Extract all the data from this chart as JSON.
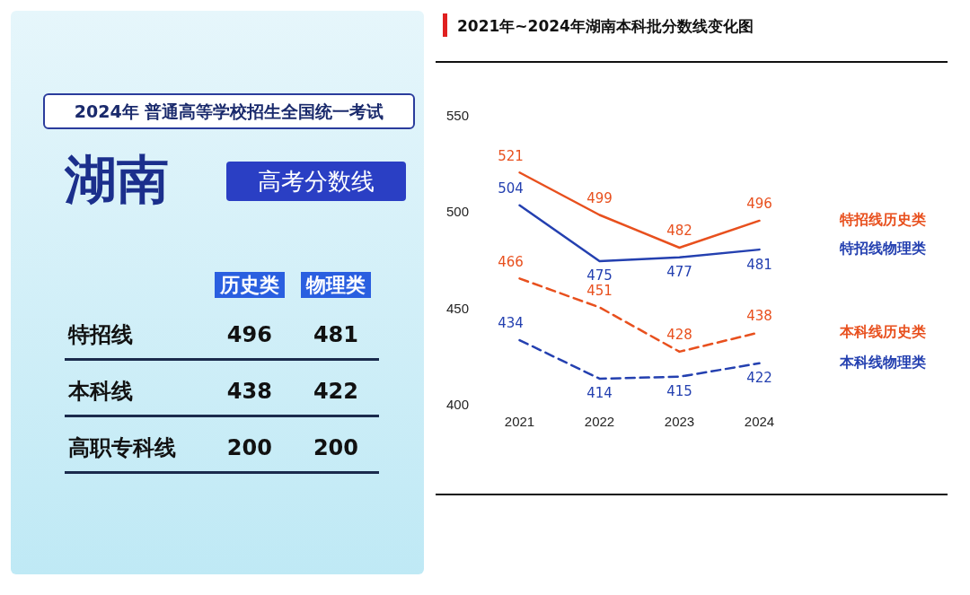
{
  "chart_data": [
    {
      "type": "other",
      "title": "湖南",
      "subtitle": "2024年 普通高等学校招生全国统一考试",
      "annotations": [
        "高考分数线"
      ],
      "categories": [
        "特招线",
        "本科线",
        "高职专科线"
      ],
      "data_labels": true,
      "series": [
        {
          "name": "历史类",
          "values": [
            496,
            438,
            200
          ]
        },
        {
          "name": "物理类",
          "values": [
            481,
            422,
            200
          ]
        }
      ]
    },
    {
      "type": "line",
      "title": "2021年~2024年湖南本科批分数线变化图",
      "categories": [
        "2021",
        "2022",
        "2023",
        "2024"
      ],
      "ylim": [
        400,
        550
      ],
      "yticks": [
        400,
        450,
        500,
        550
      ],
      "grid": false,
      "marker": "none",
      "data_labels": true,
      "series": [
        {
          "name": "特招线历史类",
          "color": "#e8501e",
          "line_style": "solid",
          "values": [
            521,
            499,
            482,
            496
          ]
        },
        {
          "name": "特招线物理类",
          "color": "#2440b0",
          "line_style": "solid",
          "values": [
            504,
            475,
            477,
            481
          ]
        },
        {
          "name": "本科线历史类",
          "color": "#e8501e",
          "line_style": "dashed",
          "values": [
            466,
            451,
            428,
            438
          ]
        },
        {
          "name": "本科线物理类",
          "color": "#2440b0",
          "line_style": "dashed",
          "values": [
            434,
            414,
            415,
            422
          ]
        }
      ]
    }
  ]
}
